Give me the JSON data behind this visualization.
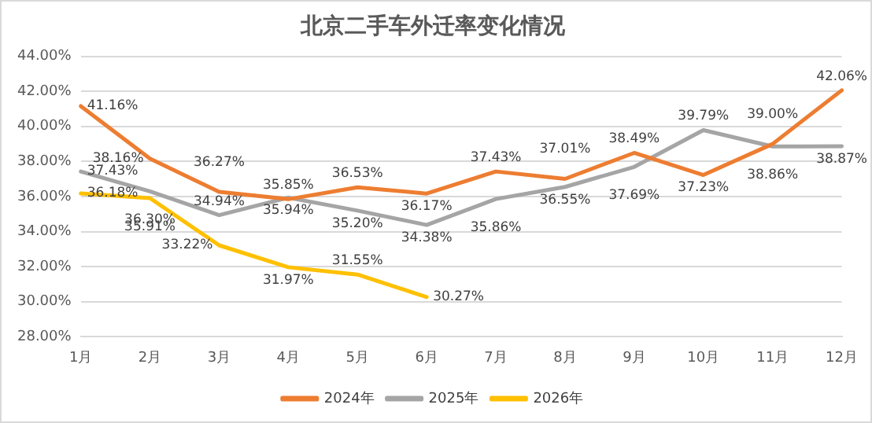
{
  "chart_data": {
    "type": "line",
    "title": "北京二手车外迁率变化情况",
    "categories": [
      "1月",
      "2月",
      "3月",
      "4月",
      "5月",
      "6月",
      "7月",
      "8月",
      "9月",
      "10月",
      "11月",
      "12月"
    ],
    "series": [
      {
        "name": "2024年",
        "color": "#ed7d31",
        "values": [
          41.16,
          38.16,
          36.27,
          35.85,
          36.53,
          36.17,
          37.43,
          37.01,
          38.49,
          37.23,
          39.0,
          42.06
        ],
        "value_labels": [
          "41.16%",
          "38.16%",
          "36.27%",
          "35.85%",
          "36.53%",
          "36.17%",
          "37.43%",
          "37.01%",
          "38.49%",
          "37.23%",
          "39.00%",
          "42.06%"
        ]
      },
      {
        "name": "2025年",
        "color": "#a5a5a5",
        "values": [
          37.43,
          36.3,
          34.94,
          35.94,
          35.2,
          34.38,
          35.86,
          36.55,
          37.69,
          39.79,
          38.86,
          38.87
        ],
        "value_labels": [
          "37.43%",
          "36.30%",
          "34.94%",
          "35.94%",
          "35.20%",
          "34.38%",
          "35.86%",
          "36.55%",
          "37.69%",
          "39.79%",
          "38.86%",
          "38.87%"
        ]
      },
      {
        "name": "2026年",
        "color": "#ffc000",
        "values": [
          36.18,
          35.91,
          33.22,
          31.97,
          31.55,
          30.27,
          null,
          null,
          null,
          null,
          null,
          null
        ],
        "value_labels": [
          "36.18%",
          "35.91%",
          "33.22%",
          "31.97%",
          "31.55%",
          "30.27%",
          null,
          null,
          null,
          null,
          null,
          null
        ]
      }
    ],
    "ylim": [
      28,
      44
    ],
    "yticks": [
      {
        "value": 28,
        "label": "28.00%"
      },
      {
        "value": 30,
        "label": "30.00%"
      },
      {
        "value": 32,
        "label": "32.00%"
      },
      {
        "value": 34,
        "label": "34.00%"
      },
      {
        "value": 36,
        "label": "36.00%"
      },
      {
        "value": 38,
        "label": "38.00%"
      },
      {
        "value": 40,
        "label": "40.00%"
      },
      {
        "value": 42,
        "label": "42.00%"
      },
      {
        "value": 44,
        "label": "44.00%"
      }
    ],
    "grid": "y",
    "legend": "bottom",
    "marker": "none",
    "line_style": "solid"
  }
}
